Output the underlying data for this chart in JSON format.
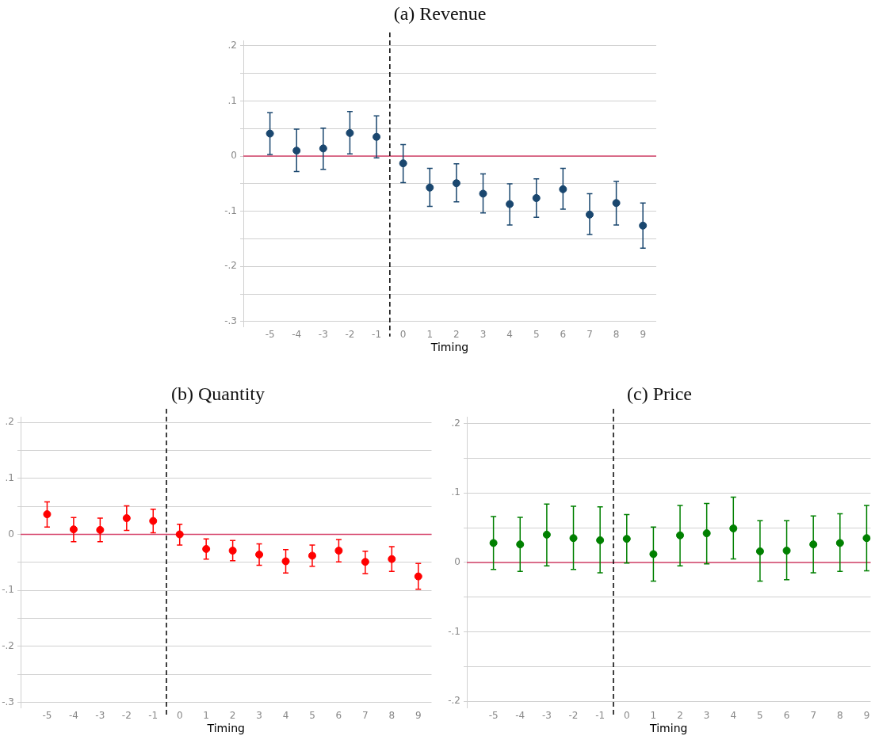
{
  "chart_data": [
    {
      "type": "scatter",
      "title": "(a) Revenue",
      "xlabel": "Timing",
      "x": [
        -5,
        -4,
        -3,
        -2,
        -1,
        0,
        1,
        2,
        3,
        4,
        5,
        6,
        7,
        8,
        9
      ],
      "series": [
        {
          "color": "#1a476f",
          "values": [
            0.041,
            0.01,
            0.014,
            0.042,
            0.035,
            -0.013,
            -0.057,
            -0.049,
            -0.068,
            -0.087,
            -0.076,
            -0.06,
            -0.106,
            -0.085,
            -0.126
          ],
          "errors": [
            [
              0.003,
              0.079
            ],
            [
              -0.028,
              0.049
            ],
            [
              -0.024,
              0.051
            ],
            [
              0.004,
              0.081
            ],
            [
              -0.003,
              0.073
            ],
            [
              -0.048,
              0.021
            ],
            [
              -0.091,
              -0.022
            ],
            [
              -0.083,
              -0.014
            ],
            [
              -0.103,
              -0.032
            ],
            [
              -0.125,
              -0.05
            ],
            [
              -0.111,
              -0.041
            ],
            [
              -0.096,
              -0.022
            ],
            [
              -0.142,
              -0.068
            ],
            [
              -0.125,
              -0.046
            ],
            [
              -0.167,
              -0.085
            ]
          ]
        }
      ],
      "xlim": [
        -6,
        9.5
      ],
      "xticks": [
        -5,
        -4,
        -3,
        -2,
        -1,
        0,
        1,
        2,
        3,
        4,
        5,
        6,
        7,
        8,
        9
      ],
      "ylim": [
        -0.31,
        0.21
      ],
      "yticks": [
        {
          "value": -0.3,
          "label": "-.3"
        },
        {
          "value": -0.25,
          "label": null
        },
        {
          "value": -0.2,
          "label": "-.2"
        },
        {
          "value": -0.15,
          "label": null
        },
        {
          "value": -0.1,
          "label": "-.1"
        },
        {
          "value": -0.05,
          "label": null
        },
        {
          "value": 0,
          "label": "0"
        },
        {
          "value": 0.05,
          "label": null
        },
        {
          "value": 0.1,
          "label": ".1"
        },
        {
          "value": 0.15,
          "label": null
        },
        {
          "value": 0.2,
          "label": ".2"
        }
      ],
      "grid": "y",
      "marker": "circle",
      "ref_lines": [
        {
          "axis": "y",
          "value": 0,
          "color": "#d6456b",
          "line_style": "solid"
        },
        {
          "axis": "x",
          "value": -0.5,
          "color": "#000000",
          "line_style": "dashed"
        }
      ]
    },
    {
      "type": "scatter",
      "title": "(b) Quantity",
      "xlabel": "Timing",
      "x": [
        -5,
        -4,
        -3,
        -2,
        -1,
        0,
        1,
        2,
        3,
        4,
        5,
        6,
        7,
        8,
        9
      ],
      "series": [
        {
          "color": "#ff0000",
          "values": [
            0.036,
            0.009,
            0.008,
            0.029,
            0.024,
            0.0,
            -0.026,
            -0.029,
            -0.036,
            -0.048,
            -0.038,
            -0.029,
            -0.049,
            -0.044,
            -0.075
          ],
          "errors": [
            [
              0.013,
              0.058
            ],
            [
              -0.013,
              0.03
            ],
            [
              -0.013,
              0.029
            ],
            [
              0.007,
              0.051
            ],
            [
              0.003,
              0.045
            ],
            [
              -0.019,
              0.018
            ],
            [
              -0.044,
              -0.008
            ],
            [
              -0.047,
              -0.011
            ],
            [
              -0.055,
              -0.017
            ],
            [
              -0.069,
              -0.027
            ],
            [
              -0.057,
              -0.019
            ],
            [
              -0.049,
              -0.009
            ],
            [
              -0.07,
              -0.03
            ],
            [
              -0.066,
              -0.022
            ],
            [
              -0.098,
              -0.052
            ]
          ]
        }
      ],
      "xlim": [
        -6,
        9.5
      ],
      "xticks": [
        -5,
        -4,
        -3,
        -2,
        -1,
        0,
        1,
        2,
        3,
        4,
        5,
        6,
        7,
        8,
        9
      ],
      "ylim": [
        -0.31,
        0.21
      ],
      "yticks": [
        {
          "value": -0.3,
          "label": "-.3"
        },
        {
          "value": -0.25,
          "label": null
        },
        {
          "value": -0.2,
          "label": "-.2"
        },
        {
          "value": -0.15,
          "label": null
        },
        {
          "value": -0.1,
          "label": "-.1"
        },
        {
          "value": -0.05,
          "label": null
        },
        {
          "value": 0,
          "label": "0"
        },
        {
          "value": 0.05,
          "label": null
        },
        {
          "value": 0.1,
          "label": ".1"
        },
        {
          "value": 0.15,
          "label": null
        },
        {
          "value": 0.2,
          "label": ".2"
        }
      ],
      "grid": "y",
      "marker": "circle",
      "ref_lines": [
        {
          "axis": "y",
          "value": 0,
          "color": "#d6456b",
          "line_style": "solid"
        },
        {
          "axis": "x",
          "value": -0.5,
          "color": "#000000",
          "line_style": "dashed"
        }
      ]
    },
    {
      "type": "scatter",
      "title": "(c) Price",
      "xlabel": "Timing",
      "x": [
        -5,
        -4,
        -3,
        -2,
        -1,
        0,
        1,
        2,
        3,
        4,
        5,
        6,
        7,
        8,
        9
      ],
      "series": [
        {
          "color": "#008000",
          "values": [
            0.028,
            0.026,
            0.04,
            0.035,
            0.032,
            0.034,
            0.012,
            0.039,
            0.042,
            0.049,
            0.016,
            0.017,
            0.026,
            0.028,
            0.035
          ],
          "errors": [
            [
              -0.01,
              0.066
            ],
            [
              -0.013,
              0.065
            ],
            [
              -0.005,
              0.084
            ],
            [
              -0.01,
              0.081
            ],
            [
              -0.015,
              0.08
            ],
            [
              -0.001,
              0.069
            ],
            [
              -0.027,
              0.051
            ],
            [
              -0.005,
              0.082
            ],
            [
              -0.002,
              0.085
            ],
            [
              0.005,
              0.094
            ],
            [
              -0.027,
              0.06
            ],
            [
              -0.025,
              0.06
            ],
            [
              -0.015,
              0.067
            ],
            [
              -0.013,
              0.07
            ],
            [
              -0.012,
              0.082
            ]
          ]
        }
      ],
      "xlim": [
        -6,
        9.15
      ],
      "xticks": [
        -5,
        -4,
        -3,
        -2,
        -1,
        0,
        1,
        2,
        3,
        4,
        5,
        6,
        7,
        8,
        9
      ],
      "ylim": [
        -0.21,
        0.21
      ],
      "yticks": [
        {
          "value": -0.2,
          "label": "-.2"
        },
        {
          "value": -0.15,
          "label": null
        },
        {
          "value": -0.1,
          "label": "-.1"
        },
        {
          "value": -0.05,
          "label": null
        },
        {
          "value": 0,
          "label": "0"
        },
        {
          "value": 0.05,
          "label": null
        },
        {
          "value": 0.1,
          "label": ".1"
        },
        {
          "value": 0.15,
          "label": null
        },
        {
          "value": 0.2,
          "label": ".2"
        }
      ],
      "grid": "y",
      "marker": "circle",
      "ref_lines": [
        {
          "axis": "y",
          "value": 0,
          "color": "#d6456b",
          "line_style": "solid"
        },
        {
          "axis": "x",
          "value": -0.5,
          "color": "#000000",
          "line_style": "dashed"
        }
      ]
    }
  ]
}
